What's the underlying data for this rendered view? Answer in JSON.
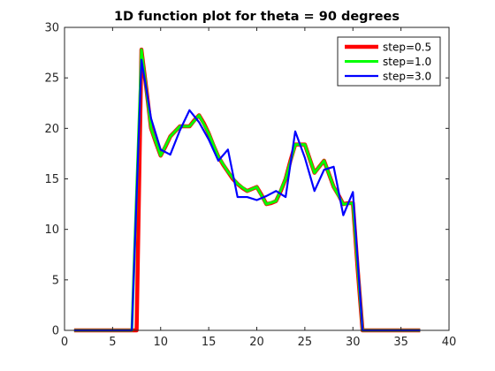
{
  "chart_data": {
    "type": "line",
    "title": "1D function plot for theta = 90 degrees",
    "xlabel": "",
    "ylabel": "",
    "xlim": [
      0,
      40
    ],
    "ylim": [
      0,
      30
    ],
    "x_ticks": [
      0,
      5,
      10,
      15,
      20,
      25,
      30,
      35,
      40
    ],
    "y_ticks": [
      0,
      5,
      10,
      15,
      20,
      25,
      30
    ],
    "grid": false,
    "legend_position": "top-right",
    "series": [
      {
        "name": "step=0.5",
        "color": "#ff0000",
        "x": [
          1,
          2,
          3,
          4,
          5,
          6,
          7,
          7.5,
          8,
          8.5,
          9,
          9.5,
          10,
          10.5,
          11,
          11.5,
          12,
          12.5,
          13,
          13.5,
          14,
          14.5,
          15,
          15.5,
          16,
          16.5,
          17,
          17.5,
          18,
          18.5,
          19,
          19.5,
          20,
          20.5,
          21,
          21.5,
          22,
          22.5,
          23,
          23.5,
          24,
          24.5,
          25,
          25.5,
          26,
          26.5,
          27,
          27.5,
          28,
          28.5,
          29,
          29.5,
          30,
          30.5,
          31,
          32,
          33,
          34,
          35,
          36,
          37
        ],
        "y": [
          0,
          0,
          0,
          0,
          0,
          0,
          0,
          0,
          27.8,
          24,
          20,
          18.6,
          17.3,
          18.2,
          19.2,
          19.7,
          20.2,
          20.2,
          20.2,
          20.8,
          21.3,
          20.5,
          19.5,
          18.3,
          17.2,
          16.4,
          15.7,
          15.0,
          14.5,
          14.1,
          13.8,
          14.0,
          14.2,
          13.4,
          12.5,
          12.6,
          12.8,
          13.8,
          15.0,
          16.8,
          18.4,
          18.4,
          18.4,
          17.0,
          15.6,
          16.2,
          16.8,
          15.5,
          14.2,
          13.4,
          12.5,
          12.6,
          12.6,
          6.0,
          0,
          0,
          0,
          0,
          0,
          0,
          0
        ]
      },
      {
        "name": "step=1.0",
        "color": "#00ff00",
        "x": [
          1,
          2,
          3,
          4,
          5,
          6,
          7,
          8,
          9,
          10,
          11,
          12,
          13,
          14,
          15,
          16,
          17,
          18,
          19,
          20,
          21,
          22,
          23,
          24,
          25,
          26,
          27,
          28,
          29,
          30,
          31,
          32,
          33,
          34,
          35,
          36,
          37
        ],
        "y": [
          0,
          0,
          0,
          0,
          0,
          0,
          0,
          27.8,
          20.0,
          17.3,
          19.2,
          20.2,
          20.2,
          21.3,
          19.5,
          17.2,
          15.7,
          14.5,
          13.8,
          14.2,
          12.5,
          12.8,
          15.0,
          18.4,
          18.4,
          15.6,
          16.8,
          14.2,
          12.5,
          12.6,
          0,
          0,
          0,
          0,
          0,
          0,
          0
        ]
      },
      {
        "name": "step=3.0",
        "color": "#0000ff",
        "x": [
          1,
          2,
          3,
          4,
          5,
          6,
          7,
          8,
          9,
          10,
          11,
          12,
          13,
          14,
          15,
          16,
          17,
          18,
          19,
          20,
          21,
          22,
          23,
          24,
          25,
          26,
          27,
          28,
          29,
          30,
          31,
          32,
          33,
          34,
          35,
          36,
          37
        ],
        "y": [
          0,
          0,
          0,
          0,
          0,
          0,
          0,
          26.8,
          21.0,
          17.9,
          17.4,
          19.8,
          21.8,
          20.6,
          18.9,
          16.8,
          17.9,
          13.2,
          13.2,
          12.9,
          13.3,
          13.8,
          13.2,
          19.7,
          17.1,
          13.8,
          15.9,
          16.2,
          11.4,
          13.7,
          0,
          0,
          0,
          0,
          0,
          0,
          0
        ]
      }
    ]
  }
}
